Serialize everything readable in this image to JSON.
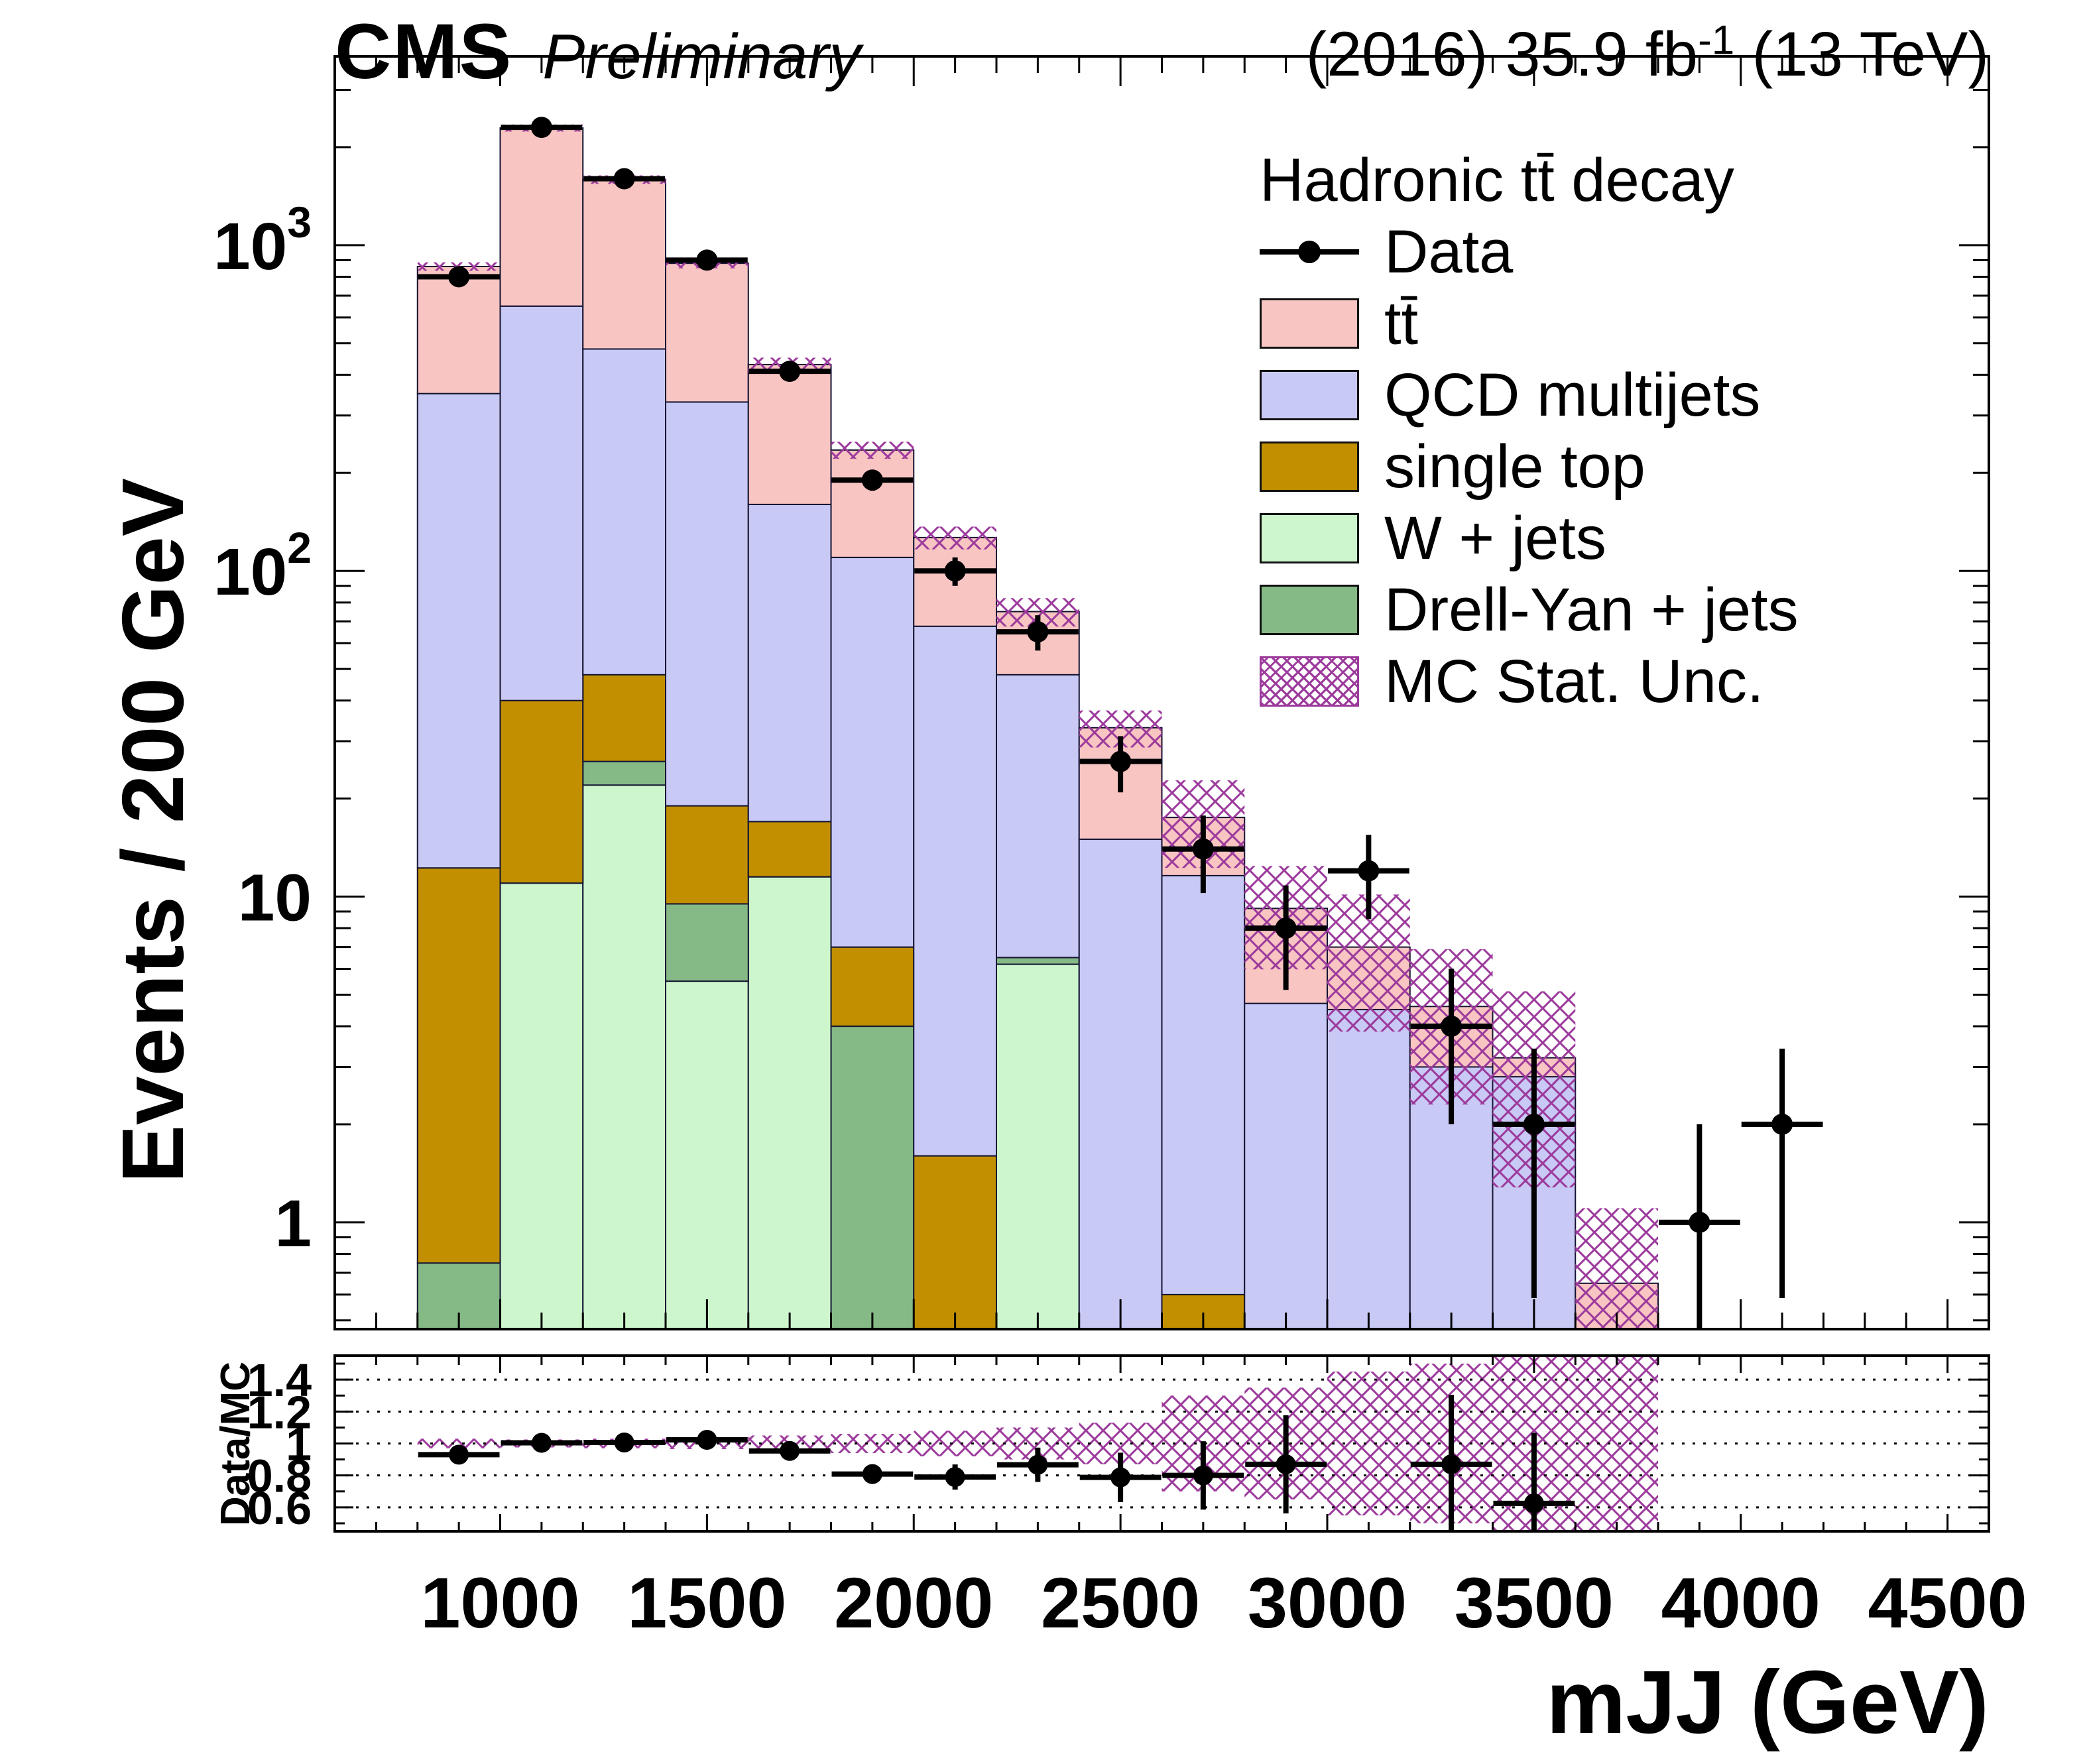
{
  "header": {
    "experiment": "CMS",
    "status": "Preliminary",
    "lumi_prefix": "(2016) 35.9 fb",
    "lumi_exponent": "-1",
    "energy_suffix": " (13 TeV)"
  },
  "axes": {
    "y_label": "Events / 200 GeV",
    "x_label": "mJJ (GeV)",
    "ratio_label": "Data/MC",
    "x_ticks": [
      1000,
      1500,
      2000,
      2500,
      3000,
      3500,
      4000,
      4500
    ],
    "y_ticks": [
      {
        "value": 1,
        "label": "1"
      },
      {
        "value": 10,
        "label": "10"
      },
      {
        "value": 100,
        "base": "10",
        "exp": "2"
      },
      {
        "value": 1000,
        "base": "10",
        "exp": "3"
      }
    ],
    "ratio_ticks": [
      0.6,
      0.8,
      1,
      1.2,
      1.4
    ]
  },
  "legend": {
    "title": "Hadronic tt̄ decay",
    "entries": [
      {
        "label": "Data",
        "type": "marker",
        "color": "#000000"
      },
      {
        "label": "tt̄",
        "type": "fill",
        "color": "#f8c5c2"
      },
      {
        "label": "QCD multijets",
        "type": "fill",
        "color": "#c9c9f5"
      },
      {
        "label": "single top",
        "type": "fill",
        "color": "#c18f00"
      },
      {
        "label": "W + jets",
        "type": "fill",
        "color": "#cdf6cd"
      },
      {
        "label": "Drell-Yan + jets",
        "type": "fill",
        "color": "#85b985"
      },
      {
        "label": "MC Stat. Unc.",
        "type": "hatch",
        "color": "#9c3a9c"
      }
    ]
  },
  "chart_data": {
    "type": "bar",
    "subtype": "stacked-histogram-log-with-ratio",
    "title": "Hadronic tt̄ decay",
    "xlabel": "mJJ (GeV)",
    "ylabel": "Events / 200 GeV",
    "bin_start": 800,
    "bin_width": 200,
    "n_bins": 15,
    "x_range": [
      600,
      4600
    ],
    "y_range": [
      0.47,
      3800
    ],
    "ratio_range": [
      0.45,
      1.55
    ],
    "unc_color": "#9c3a9c",
    "outline_color": "#141432",
    "series": [
      {
        "name": "W + jets",
        "color": "#cdf6cd",
        "values": [
          0,
          11,
          22,
          5.5,
          11.5,
          0.4,
          0,
          6.2,
          0,
          0,
          0,
          0,
          0,
          0,
          0
        ]
      },
      {
        "name": "Drell-Yan + jets",
        "color": "#85b985",
        "values": [
          0.75,
          0,
          4,
          4,
          0,
          3.6,
          0,
          0.3,
          0,
          0,
          0,
          0,
          0,
          0,
          0
        ]
      },
      {
        "name": "single top",
        "color": "#c18f00",
        "values": [
          11.5,
          29,
          22,
          9.5,
          5.5,
          3.0,
          1.6,
          0,
          0,
          0.6,
          0,
          0,
          0,
          0,
          0
        ]
      },
      {
        "name": "QCD multijets",
        "color": "#c9c9f5",
        "values": [
          338,
          610,
          432,
          311,
          143,
          103,
          66,
          41.5,
          15,
          11,
          4.7,
          4.5,
          3.0,
          2.8,
          0.25
        ]
      },
      {
        "name": "tt̄",
        "color": "#f8c5c2",
        "values": [
          510,
          1640,
          1110,
          550,
          270,
          125,
          59,
          27,
          18,
          5.9,
          4.5,
          2.5,
          1.6,
          0.4,
          0.4
        ]
      }
    ],
    "mc_stat_unc_rel": [
      0.03,
      0.025,
      0.03,
      0.035,
      0.05,
      0.06,
      0.08,
      0.1,
      0.13,
      0.3,
      0.35,
      0.45,
      0.5,
      0.6,
      0.7
    ],
    "data": {
      "x": [
        900,
        1100,
        1300,
        1500,
        1700,
        1900,
        2100,
        2300,
        2500,
        2700,
        2900,
        3100,
        3300,
        3500,
        3900,
        4100
      ],
      "y": [
        800,
        2300,
        1600,
        900,
        410,
        190,
        100,
        65,
        26,
        14,
        8,
        12,
        4,
        2,
        1,
        2
      ]
    }
  }
}
